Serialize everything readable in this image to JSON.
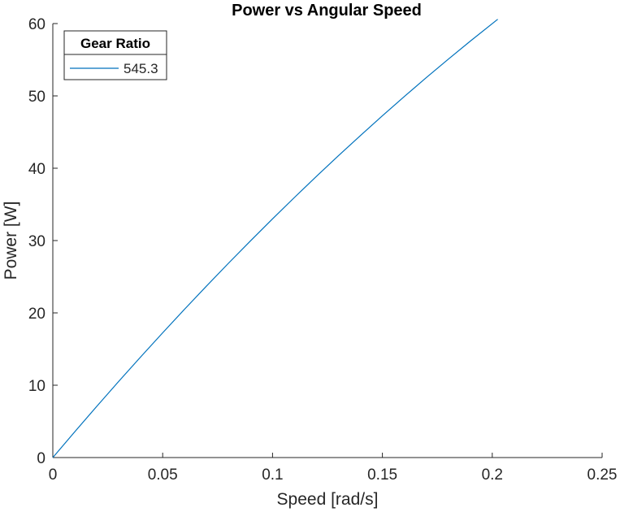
{
  "chart_data": {
    "type": "line",
    "title": "Power vs Angular Speed",
    "xlabel": "Speed [rad/s]",
    "ylabel": "Power [W]",
    "xlim": [
      0,
      0.25
    ],
    "ylim": [
      0,
      60
    ],
    "xticks": [
      "0",
      "0.05",
      "0.1",
      "0.15",
      "0.2",
      "0.25"
    ],
    "yticks": [
      "0",
      "10",
      "20",
      "30",
      "40",
      "50",
      "60"
    ],
    "grid": false,
    "legend": {
      "title": "Gear Ratio",
      "placement": "top-left"
    },
    "series": [
      {
        "name": "545.3",
        "color": "#0072BD",
        "x": [
          0,
          0.01,
          0.02,
          0.03,
          0.04,
          0.05,
          0.06,
          0.07,
          0.08,
          0.09,
          0.1,
          0.11,
          0.12,
          0.13,
          0.14,
          0.15,
          0.16,
          0.17,
          0.18,
          0.19,
          0.2025
        ],
        "y": [
          0,
          3.57,
          7.08,
          10.53,
          13.92,
          17.25,
          20.52,
          23.73,
          26.88,
          29.97,
          33.0,
          35.97,
          38.88,
          41.73,
          44.52,
          47.25,
          49.92,
          52.53,
          55.08,
          57.57,
          60.6
        ]
      }
    ]
  }
}
